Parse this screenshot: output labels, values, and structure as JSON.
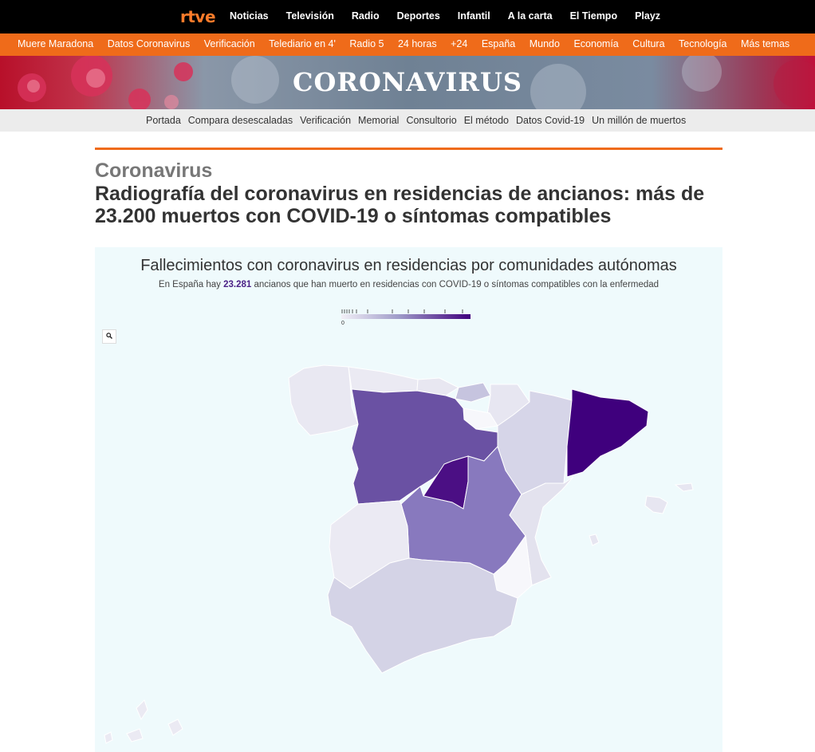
{
  "top_nav": {
    "logo": "rtve",
    "items": [
      "Noticias",
      "Televisión",
      "Radio",
      "Deportes",
      "Infantil",
      "A la carta",
      "El Tiempo",
      "Playz"
    ]
  },
  "section_nav": {
    "items": [
      "Muere Maradona",
      "Datos Coronavirus",
      "Verificación",
      "Telediario en 4'",
      "Radio 5",
      "24 horas",
      "+24",
      "España",
      "Mundo",
      "Economía",
      "Cultura",
      "Tecnología",
      "Más temas"
    ]
  },
  "banner": {
    "title": "CORONAVIRUS"
  },
  "sub_nav": {
    "items": [
      "Portada",
      "Compara desescaladas",
      "Verificación",
      "Memorial",
      "Consultorio",
      "El método",
      "Datos Covid-19",
      "Un millón de muertos"
    ]
  },
  "article": {
    "kicker": "Coronavirus",
    "headline": "Radiografía del coronavirus en residencias de ancianos: más de 23.200 muertos con COVID-19 o síntomas compatibles"
  },
  "chart": {
    "title": "Fallecimientos con coronavirus en residencias por comunidades autónomas",
    "subtitle_prefix": "En España hay ",
    "subtitle_number": "23.281",
    "subtitle_suffix": " ancianos que han muerto en residencias con COVID-19 o síntomas compatibles con la enfermedad",
    "legend_min": "0",
    "zoom_icon": "search-icon"
  },
  "colors": {
    "orange": "#ef6b1a",
    "purple_dark": "#3f007d",
    "purple_mid": "#6a51a3",
    "purple_light": "#9e9ac8",
    "chart_bg": "#effafc"
  }
}
